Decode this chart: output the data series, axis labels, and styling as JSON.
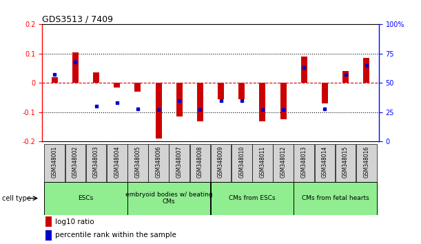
{
  "title": "GDS3513 / 7409",
  "samples": [
    "GSM348001",
    "GSM348002",
    "GSM348003",
    "GSM348004",
    "GSM348005",
    "GSM348006",
    "GSM348007",
    "GSM348008",
    "GSM348009",
    "GSM348010",
    "GSM348011",
    "GSM348012",
    "GSM348013",
    "GSM348014",
    "GSM348015",
    "GSM348016"
  ],
  "log10_ratio": [
    0.02,
    0.105,
    0.035,
    -0.015,
    -0.03,
    -0.19,
    -0.115,
    -0.13,
    -0.055,
    -0.055,
    -0.13,
    -0.125,
    0.09,
    -0.07,
    0.04,
    0.085
  ],
  "percentile_rank": [
    57,
    68,
    30,
    33,
    28,
    27,
    35,
    27,
    35,
    35,
    27,
    27,
    63,
    28,
    57,
    65
  ],
  "cell_type_groups": [
    {
      "label": "ESCs",
      "start": 0,
      "end": 3
    },
    {
      "label": "embryoid bodies w/ beating\nCMs",
      "start": 4,
      "end": 7
    },
    {
      "label": "CMs from ESCs",
      "start": 8,
      "end": 11
    },
    {
      "label": "CMs from fetal hearts",
      "start": 12,
      "end": 15
    }
  ],
  "bar_color_red": "#CC0000",
  "bar_color_blue": "#0000CC",
  "ylim_left": [
    -0.2,
    0.2
  ],
  "ylim_right": [
    0,
    100
  ],
  "cell_group_color": "#90EE90",
  "sample_box_color": "#D3D3D3",
  "zero_line_color": "#CC0000"
}
